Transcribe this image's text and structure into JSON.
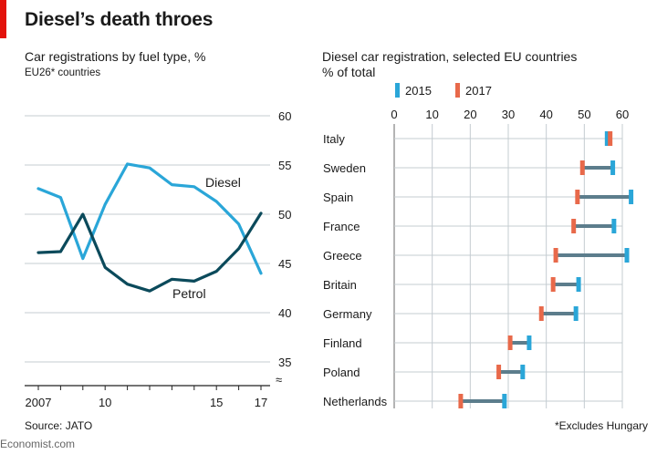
{
  "header": {
    "accent": "#e3120b",
    "title": "Diesel’s death throes"
  },
  "left": {
    "title": "Car registrations by fuel type, %",
    "note": "EU26* countries"
  },
  "right": {
    "title": "Diesel car registration, selected EU countries",
    "note": "% of total"
  },
  "footer": {
    "source": "Source: JATO",
    "footnote": "*Excludes Hungary",
    "brand": "Economist.com"
  },
  "chart_data": [
    {
      "type": "line",
      "x": [
        2007,
        2008,
        2009,
        2010,
        2011,
        2012,
        2013,
        2014,
        2015,
        2016,
        2017
      ],
      "x_tick_labels": [
        "2007",
        "10",
        "15",
        "17"
      ],
      "y_ticks": [
        35,
        40,
        45,
        50,
        55,
        60
      ],
      "ylim": [
        33.5,
        60
      ],
      "axis_break": true,
      "y_axis_side": "right",
      "grid": true,
      "series": [
        {
          "name": "Diesel",
          "color": "#2aa6d8",
          "values": [
            52.6,
            51.7,
            45.5,
            51.0,
            55.1,
            54.7,
            53.0,
            52.8,
            51.3,
            49.0,
            44.0
          ]
        },
        {
          "name": "Petrol",
          "color": "#0b4a5b",
          "values": [
            46.1,
            46.2,
            50.0,
            44.6,
            42.9,
            42.2,
            43.4,
            43.2,
            44.2,
            46.5,
            50.1
          ]
        }
      ]
    },
    {
      "type": "dot-range",
      "categories": [
        "Italy",
        "Sweden",
        "Spain",
        "France",
        "Greece",
        "Britain",
        "Germany",
        "Finland",
        "Poland",
        "Netherlands"
      ],
      "x_ticks": [
        0,
        10,
        20,
        30,
        40,
        50,
        60
      ],
      "xlim": [
        0,
        62
      ],
      "x_axis_side": "top",
      "grid": true,
      "legend_position": "top",
      "series": [
        {
          "name": "2015",
          "color": "#2aa6d8",
          "values": [
            56.0,
            57.5,
            62.3,
            57.8,
            61.2,
            48.5,
            47.8,
            35.5,
            33.8,
            29.0
          ]
        },
        {
          "name": "2017",
          "color": "#e8694a",
          "values": [
            56.8,
            49.5,
            48.2,
            47.2,
            42.5,
            41.8,
            38.7,
            30.5,
            27.5,
            17.5
          ]
        }
      ],
      "range_color": "#5c7d8c"
    }
  ]
}
